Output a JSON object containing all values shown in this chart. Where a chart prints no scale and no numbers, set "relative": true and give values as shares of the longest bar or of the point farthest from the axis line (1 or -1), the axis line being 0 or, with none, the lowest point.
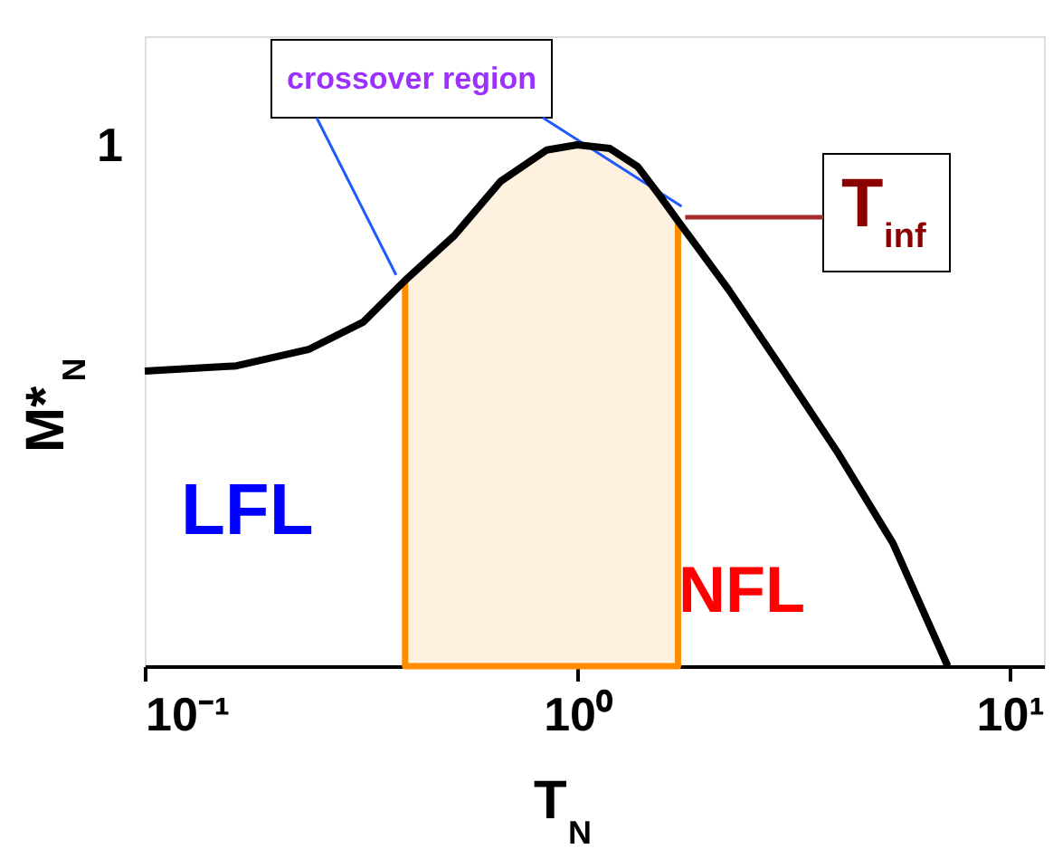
{
  "chart_data": {
    "type": "line",
    "relative": true,
    "xlabel": "T$_{N}$",
    "ylabel": "M*$_{N}$",
    "log": "x",
    "xlim": [
      0.1,
      12
    ],
    "xticks": [
      {
        "value": 0.1,
        "label": "10⁻¹"
      },
      {
        "value": 1,
        "label": "10⁰"
      },
      {
        "value": 10,
        "label": "10¹"
      }
    ],
    "x": [
      0.1,
      0.163,
      0.24,
      0.32,
      0.4,
      0.52,
      0.665,
      0.85,
      1,
      1.19,
      1.38,
      1.55,
      1.71,
      2.24,
      3.0,
      4.0,
      5.37,
      7.19
    ],
    "series": [
      {
        "color": "#000000",
        "values": [
          0.566,
          0.576,
          0.608,
          0.66,
          0.74,
          0.826,
          0.93,
          0.99,
          1.0,
          0.993,
          0.958,
          0.903,
          0.854,
          0.722,
          0.566,
          0.41,
          0.236,
          0.0
        ]
      }
    ],
    "bands": [
      {
        "axis": "x",
        "from": 0.4,
        "to": 1.71,
        "label": "crossover region",
        "color": "#ff8c00"
      }
    ],
    "annotations": [
      "1",
      "LFL",
      "NFL",
      {
        "text": "T$_{inf}$",
        "x": 1.71,
        "y": 0.854
      }
    ],
    "grid": false
  }
}
